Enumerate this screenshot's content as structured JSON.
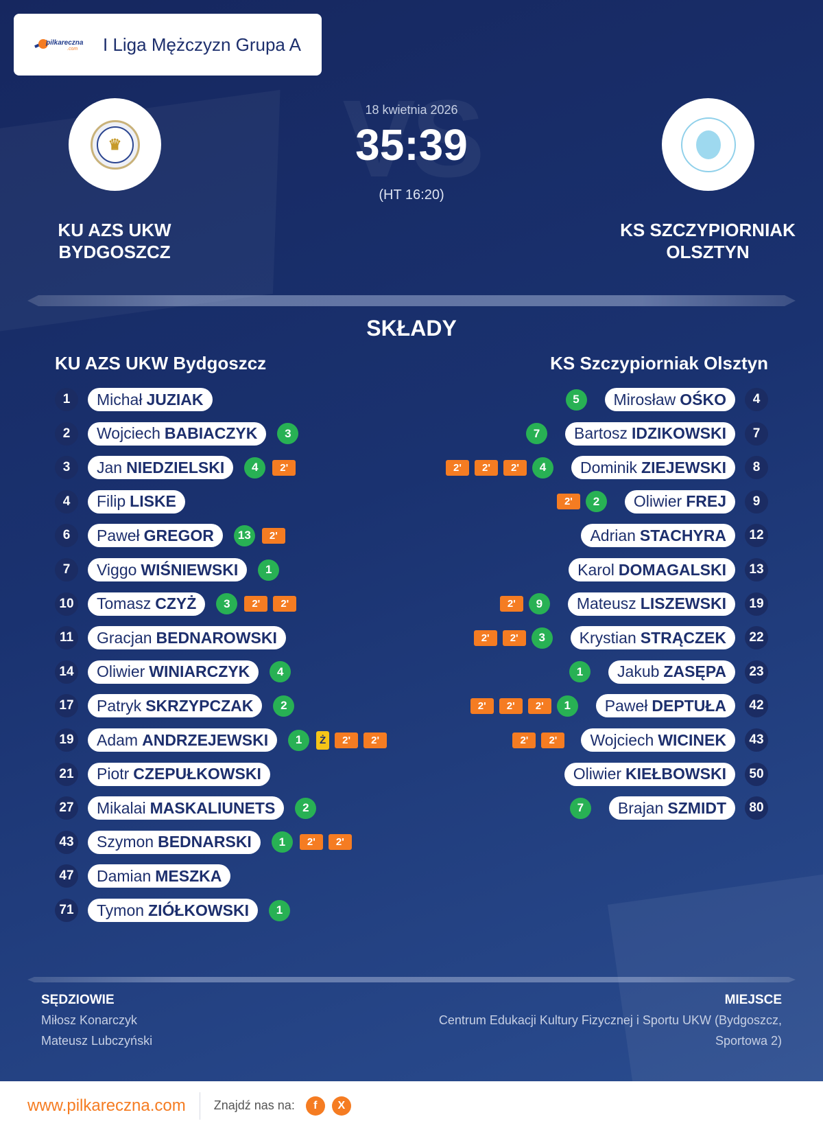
{
  "header": {
    "logo_text": "pilkareczna",
    "logo_sub": ".com",
    "league": "I Liga Mężczyzn Grupa A"
  },
  "match": {
    "date": "18 kwietnia 2026",
    "score": "35:39",
    "halftime": "(HT 16:20)",
    "watermark": "VS"
  },
  "home": {
    "name": "KU AZS UKW BYDGOSZCZ",
    "squad_title": "KU AZS UKW Bydgoszcz"
  },
  "away": {
    "name": "KS SZCZYPIORNIAK OLSZTYN",
    "squad_title": "KS Szczypiorniak Olsztyn"
  },
  "section_title": "SKŁADY",
  "home_players": [
    {
      "num": "1",
      "first": "Michał",
      "last": "JUZIAK",
      "badges": []
    },
    {
      "num": "2",
      "first": "Wojciech",
      "last": "BABIACZYK",
      "badges": [
        {
          "t": "goal",
          "v": "3"
        }
      ]
    },
    {
      "num": "3",
      "first": "Jan",
      "last": "NIEDZIELSKI",
      "badges": [
        {
          "t": "goal",
          "v": "4"
        },
        {
          "t": "susp",
          "v": "2'"
        }
      ]
    },
    {
      "num": "4",
      "first": "Filip",
      "last": "LISKE",
      "badges": []
    },
    {
      "num": "6",
      "first": "Paweł",
      "last": "GREGOR",
      "badges": [
        {
          "t": "goal",
          "v": "13"
        },
        {
          "t": "susp",
          "v": "2'"
        }
      ]
    },
    {
      "num": "7",
      "first": "Viggo",
      "last": "WIŚNIEWSKI",
      "badges": [
        {
          "t": "goal",
          "v": "1"
        }
      ]
    },
    {
      "num": "10",
      "first": "Tomasz",
      "last": "CZYŻ",
      "badges": [
        {
          "t": "goal",
          "v": "3"
        },
        {
          "t": "susp",
          "v": "2'"
        },
        {
          "t": "susp",
          "v": "2'"
        }
      ]
    },
    {
      "num": "11",
      "first": "Gracjan",
      "last": "BEDNAROWSKI",
      "badges": []
    },
    {
      "num": "14",
      "first": "Oliwier",
      "last": "WINIARCZYK",
      "badges": [
        {
          "t": "goal",
          "v": "4"
        }
      ]
    },
    {
      "num": "17",
      "first": "Patryk",
      "last": "SKRZYPCZAK",
      "badges": [
        {
          "t": "goal",
          "v": "2"
        }
      ]
    },
    {
      "num": "19",
      "first": "Adam",
      "last": "ANDRZEJEWSKI",
      "badges": [
        {
          "t": "goal",
          "v": "1"
        },
        {
          "t": "yellow",
          "v": "Ż"
        },
        {
          "t": "susp",
          "v": "2'"
        },
        {
          "t": "susp",
          "v": "2'"
        }
      ]
    },
    {
      "num": "21",
      "first": "Piotr",
      "last": "CZEPUŁKOWSKI",
      "badges": []
    },
    {
      "num": "27",
      "first": "Mikalai",
      "last": "MASKALIUNETS",
      "badges": [
        {
          "t": "goal",
          "v": "2"
        }
      ]
    },
    {
      "num": "43",
      "first": "Szymon",
      "last": "BEDNARSKI",
      "badges": [
        {
          "t": "goal",
          "v": "1"
        },
        {
          "t": "susp",
          "v": "2'"
        },
        {
          "t": "susp",
          "v": "2'"
        }
      ]
    },
    {
      "num": "47",
      "first": "Damian",
      "last": "MESZKA",
      "badges": []
    },
    {
      "num": "71",
      "first": "Tymon",
      "last": "ZIÓŁKOWSKI",
      "badges": [
        {
          "t": "goal",
          "v": "1"
        }
      ]
    }
  ],
  "away_players": [
    {
      "num": "4",
      "first": "Mirosław",
      "last": "OŚKO",
      "badges": [
        {
          "t": "goal",
          "v": "5"
        }
      ]
    },
    {
      "num": "7",
      "first": "Bartosz",
      "last": "IDZIKOWSKI",
      "badges": [
        {
          "t": "goal",
          "v": "7"
        }
      ]
    },
    {
      "num": "8",
      "first": "Dominik",
      "last": "ZIEJEWSKI",
      "badges": [
        {
          "t": "susp",
          "v": "2'"
        },
        {
          "t": "susp",
          "v": "2'"
        },
        {
          "t": "susp",
          "v": "2'"
        },
        {
          "t": "goal",
          "v": "4"
        }
      ]
    },
    {
      "num": "9",
      "first": "Oliwier",
      "last": "FREJ",
      "badges": [
        {
          "t": "susp",
          "v": "2'"
        },
        {
          "t": "goal",
          "v": "2"
        }
      ]
    },
    {
      "num": "12",
      "first": "Adrian",
      "last": "STACHYRA",
      "badges": []
    },
    {
      "num": "13",
      "first": "Karol",
      "last": "DOMAGALSKI",
      "badges": []
    },
    {
      "num": "19",
      "first": "Mateusz",
      "last": "LISZEWSKI",
      "badges": [
        {
          "t": "susp",
          "v": "2'"
        },
        {
          "t": "goal",
          "v": "9"
        }
      ]
    },
    {
      "num": "22",
      "first": "Krystian",
      "last": "STRĄCZEK",
      "badges": [
        {
          "t": "susp",
          "v": "2'"
        },
        {
          "t": "susp",
          "v": "2'"
        },
        {
          "t": "goal",
          "v": "3"
        }
      ]
    },
    {
      "num": "23",
      "first": "Jakub",
      "last": "ZASĘPA",
      "badges": [
        {
          "t": "goal",
          "v": "1"
        }
      ]
    },
    {
      "num": "42",
      "first": "Paweł",
      "last": "DEPTUŁA",
      "badges": [
        {
          "t": "susp",
          "v": "2'"
        },
        {
          "t": "susp",
          "v": "2'"
        },
        {
          "t": "susp",
          "v": "2'"
        },
        {
          "t": "goal",
          "v": "1"
        }
      ]
    },
    {
      "num": "43",
      "first": "Wojciech",
      "last": "WICINEK",
      "badges": [
        {
          "t": "susp",
          "v": "2'"
        },
        {
          "t": "susp",
          "v": "2'"
        }
      ]
    },
    {
      "num": "50",
      "first": "Oliwier",
      "last": "KIEŁBOWSKI",
      "badges": []
    },
    {
      "num": "80",
      "first": "Brajan",
      "last": "SZMIDT",
      "badges": [
        {
          "t": "goal",
          "v": "7"
        }
      ]
    }
  ],
  "footer": {
    "referees_title": "SĘDZIOWIE",
    "referees": [
      "Miłosz Konarczyk",
      "Mateusz Lubczyński"
    ],
    "venue_title": "MIEJSCE",
    "venue": "Centrum Edukacji Kultury Fizycznej i Sportu UKW (Bydgoszcz, Sportowa 2)"
  },
  "bottom_bar": {
    "url": "www.pilkareczna.com",
    "find_us": "Znajdź nas na:",
    "facebook_icon": "f",
    "x_icon": "X"
  },
  "colors": {
    "accent": "#f57c22",
    "goal": "#28b154",
    "background": "#1a3270"
  }
}
